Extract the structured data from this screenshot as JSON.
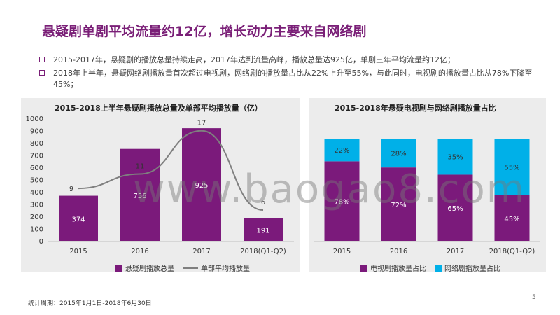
{
  "slide": {
    "title": "悬疑剧单剧平均流量约12亿，增长动力主要来自网络剧",
    "bullets": [
      "2015-2017年，悬疑剧的播放总量持续走高，2017年达到流量高峰，播放总量达925亿，单剧三年平均流量约12亿；",
      "2018年上半年，悬疑网络剧播放量首次超过电视剧，网络剧的播放量占比从22%上升至55%，与此同时，电视剧的播放量占比从78%下降至45%；"
    ],
    "footnote": "统计周期：2015年1月1日-2018年6月30日",
    "page_number": "5",
    "watermark": "www.baogao8.com",
    "colors": {
      "accent": "#7a1f77",
      "bar_purple": "#7b1a7b",
      "line_gray": "#7f7f7f",
      "cyan": "#00b0e8"
    }
  },
  "chart_data": [
    {
      "type": "bar",
      "title": "2015-2018上半年悬疑剧播放总量及单部平均播放量（亿）",
      "categories": [
        "2015",
        "2016",
        "2017",
        "2018(Q1-Q2)"
      ],
      "ylim": [
        0,
        1000
      ],
      "yticks": [
        "0",
        "100",
        "200",
        "300",
        "400",
        "500",
        "600",
        "700",
        "800",
        "900",
        "1000"
      ],
      "series": [
        {
          "name": "悬疑剧播放总量",
          "kind": "bar",
          "values": [
            374,
            756,
            925,
            191
          ],
          "labels": [
            "374",
            "756",
            "925",
            "191"
          ]
        },
        {
          "name": "单部平均播放量",
          "kind": "line",
          "values": [
            9,
            11,
            17,
            6
          ],
          "labels": [
            "9",
            "11",
            "17",
            "6"
          ]
        }
      ],
      "legend_position": "bottom"
    },
    {
      "type": "bar",
      "stacked": true,
      "title": "2015-2018年悬疑电视剧与网络剧播放量占比",
      "categories": [
        "2015",
        "2016",
        "2017",
        "2018(Q1-Q2)"
      ],
      "series": [
        {
          "name": "电视剧播放量占比",
          "values": [
            78,
            72,
            65,
            45
          ],
          "labels": [
            "78%",
            "72%",
            "65%",
            "45%"
          ]
        },
        {
          "name": "网络剧播放量占比",
          "values": [
            22,
            28,
            35,
            55
          ],
          "labels": [
            "22%",
            "28%",
            "35%",
            "55%"
          ]
        }
      ],
      "legend_position": "bottom"
    }
  ]
}
